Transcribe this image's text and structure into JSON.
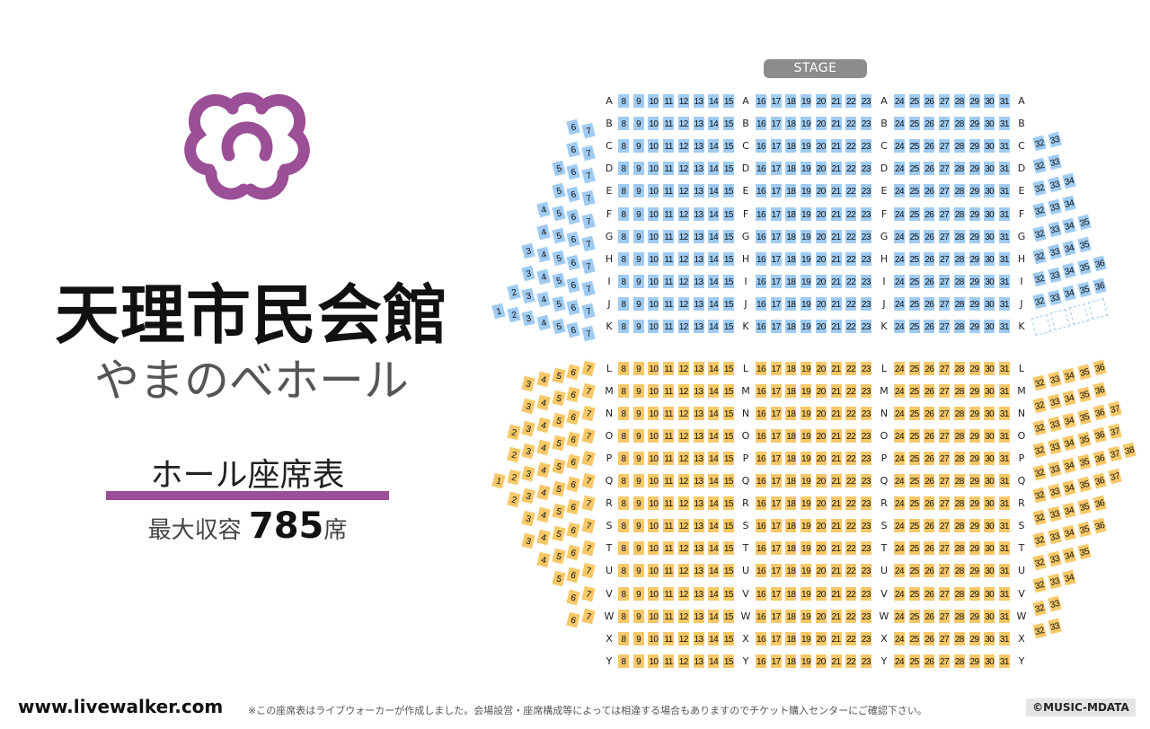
{
  "hall": {
    "name": "天理市民会館",
    "subname": "やまのべホール",
    "sheet_title": "ホール座席表",
    "capacity_label": "最大収容",
    "capacity_value": "785",
    "capacity_unit": "席"
  },
  "stage_label": "STAGE",
  "footer": {
    "url": "www.livewalker.com",
    "note": "※この座席表はライブウォーカーが作成しました。会場設営・座席構成等によっては相違する場合もありますのでチケット購入センターにご確認下さい。",
    "copyright": "©MUSIC-MDATA"
  },
  "colors": {
    "logo": "#9b4f96",
    "balcony_seats": "#9fcbf2",
    "main_seats": "#f7c867",
    "stage": "#8c8c8c"
  },
  "seat_map": {
    "front_rows": [
      "A",
      "B",
      "C",
      "D",
      "E",
      "F",
      "G",
      "H",
      "I",
      "J",
      "K"
    ],
    "rear_rows": [
      "L",
      "M",
      "N",
      "O",
      "P",
      "Q",
      "R",
      "S",
      "T",
      "U",
      "V",
      "W",
      "X",
      "Y"
    ],
    "center_left_seats": [
      8,
      9,
      10,
      11,
      12,
      13,
      14,
      15
    ],
    "center_seats": [
      16,
      17,
      18,
      19,
      20,
      21,
      22,
      23
    ],
    "center_right_seats": [
      24,
      25,
      26,
      27,
      28,
      29,
      30,
      31
    ],
    "left_wing": {
      "A": [],
      "B": [
        6,
        7
      ],
      "C": [
        6,
        7
      ],
      "D": [
        5,
        6,
        7
      ],
      "E": [
        5,
        6,
        7
      ],
      "F": [
        4,
        5,
        6,
        7
      ],
      "G": [
        4,
        5,
        6,
        7
      ],
      "H": [
        3,
        4,
        5,
        6,
        7
      ],
      "I": [
        3,
        4,
        5,
        6,
        7
      ],
      "J": [
        2,
        3,
        4,
        5,
        6,
        7
      ],
      "K": [
        1,
        2,
        3,
        4,
        5,
        6,
        7
      ],
      "L": [
        3,
        4,
        5,
        6,
        7
      ],
      "M": [
        3,
        4,
        5,
        6,
        7
      ],
      "N": [
        2,
        3,
        4,
        5,
        6,
        7
      ],
      "O": [
        2,
        3,
        4,
        5,
        6,
        7
      ],
      "P": [
        1,
        2,
        3,
        4,
        5,
        6,
        7
      ],
      "Q": [
        2,
        3,
        4,
        5,
        6,
        7
      ],
      "R": [
        3,
        4,
        5,
        6,
        7
      ],
      "S": [
        3,
        4,
        5,
        6,
        7
      ],
      "T": [
        4,
        5,
        6,
        7
      ],
      "U": [
        5,
        6,
        7
      ],
      "V": [
        6,
        7
      ],
      "W": [
        6,
        7
      ],
      "X": [],
      "Y": []
    },
    "right_wing": {
      "A": [],
      "B": [
        32,
        33
      ],
      "C": [
        32,
        33
      ],
      "D": [
        32,
        33,
        34
      ],
      "E": [
        32,
        33,
        34
      ],
      "F": [
        32,
        33,
        34,
        35
      ],
      "G": [
        32,
        33,
        34,
        35
      ],
      "H": [
        32,
        33,
        34,
        35,
        36
      ],
      "I": [
        32,
        33,
        34,
        35,
        36
      ],
      "J": [],
      "K": [],
      "L": [
        32,
        33,
        34,
        35,
        36
      ],
      "M": [
        32,
        33,
        34,
        35,
        36
      ],
      "N": [
        32,
        33,
        34,
        35,
        36,
        37
      ],
      "O": [
        32,
        33,
        34,
        35,
        36,
        37
      ],
      "P": [
        32,
        33,
        34,
        35,
        36,
        37,
        38
      ],
      "Q": [
        32,
        33,
        34,
        35,
        36,
        37
      ],
      "R": [
        32,
        33,
        34,
        35,
        36
      ],
      "S": [
        32,
        33,
        34,
        35,
        36
      ],
      "T": [
        32,
        33,
        34,
        35
      ],
      "U": [
        32,
        33,
        34
      ],
      "V": [
        32,
        33
      ],
      "W": [
        32,
        33
      ],
      "X": [],
      "Y": []
    },
    "right_wing_empty_boxes": {
      "J": 4
    }
  }
}
